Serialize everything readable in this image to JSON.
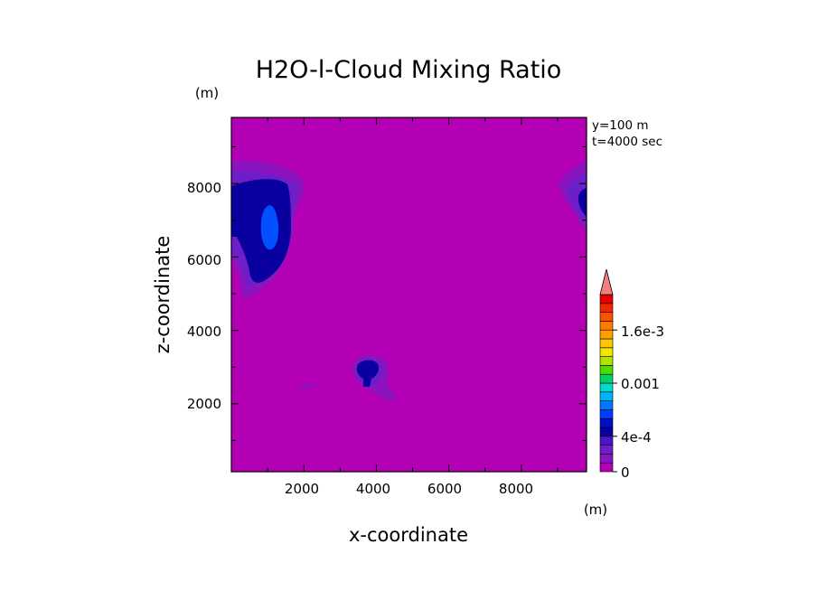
{
  "chart_data": {
    "type": "heatmap",
    "title": "H2O-l-Cloud Mixing Ratio",
    "xlabel": "x-coordinate",
    "ylabel": "z-coordinate",
    "x_unit": "(m)",
    "y_unit": "(m)",
    "xlim": [
      0,
      9800
    ],
    "ylim": [
      150,
      9800
    ],
    "x_ticks": [
      "2000",
      "4000",
      "6000",
      "8000"
    ],
    "y_ticks": [
      "2000",
      "4000",
      "6000",
      "8000"
    ],
    "annotations": [
      "y=100 m",
      "t=4000 sec"
    ],
    "colorbar": {
      "labels": [
        "0",
        "4e-4",
        "0.001",
        "1.6e-3"
      ],
      "label_values": [
        0,
        0.0004,
        0.001,
        0.0016
      ],
      "extend": "max",
      "levels": [
        0,
        0.0001,
        0.0002,
        0.0003,
        0.0004,
        0.0005,
        0.0006,
        0.0007,
        0.0008,
        0.0009,
        0.001,
        0.0011,
        0.0012,
        0.0013,
        0.0014,
        0.0015,
        0.0016,
        0.0017,
        0.0018,
        0.0019,
        0.002
      ],
      "colors": [
        "#b400b4",
        "#8c14be",
        "#6e1ec8",
        "#4b14c8",
        "#0a00a0",
        "#0010c8",
        "#003cff",
        "#0078ff",
        "#00b4ff",
        "#00dcc8",
        "#00d264",
        "#50dc00",
        "#b4e100",
        "#f0e600",
        "#ffc800",
        "#ffa000",
        "#ff7800",
        "#ff5000",
        "#f02800",
        "#e60000"
      ],
      "over_color": "#f08080"
    },
    "regions": [
      {
        "name": "upper-left cloud",
        "x_range": [
          0,
          2000
        ],
        "z_range": [
          4900,
          8800
        ],
        "max_value": 0.0006
      },
      {
        "name": "upper-right cloud",
        "x_range": [
          8900,
          9800
        ],
        "z_range": [
          6800,
          8700
        ],
        "max_value": 0.0005
      },
      {
        "name": "mid cloud",
        "x_range": [
          3400,
          4600
        ],
        "z_range": [
          2000,
          3400
        ],
        "max_value": 0.0005
      },
      {
        "name": "small patch",
        "x_range": [
          1900,
          2300
        ],
        "z_range": [
          2400,
          2550
        ],
        "max_value": 0.0001
      }
    ]
  }
}
